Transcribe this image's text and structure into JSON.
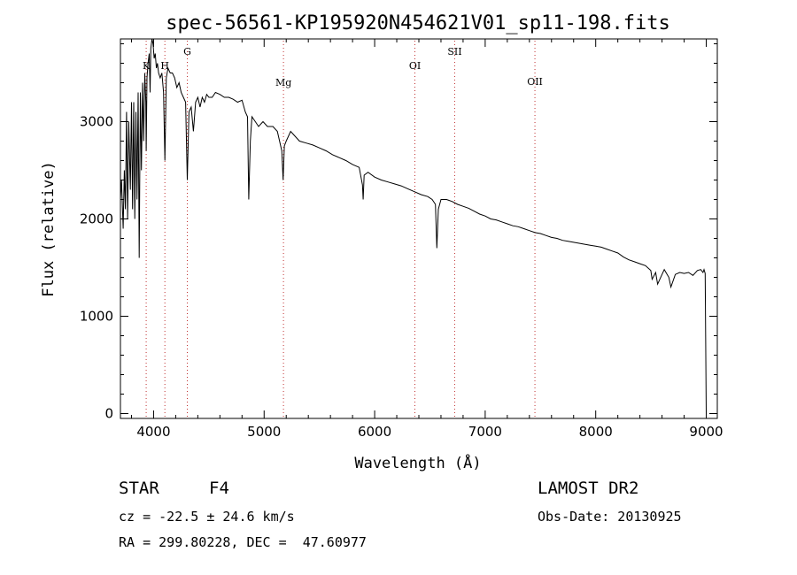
{
  "chart_data": {
    "type": "line",
    "title": "spec-56561-KP195920N454621V01_sp11-198.fits",
    "xlabel": "Wavelength (Å)",
    "ylabel": "Flux (relative)",
    "xlim": [
      3700,
      9100
    ],
    "ylim": [
      -50,
      3850
    ],
    "x_ticks": [
      4000,
      5000,
      6000,
      7000,
      8000,
      9000
    ],
    "y_ticks": [
      0,
      1000,
      2000,
      3000
    ],
    "x_tick_labels": [
      "4000",
      "5000",
      "6000",
      "7000",
      "8000",
      "9000"
    ],
    "y_tick_labels": [
      "0",
      "1000",
      "2000",
      "3000"
    ],
    "grid": false,
    "line_color": "#000000",
    "marker_color": "#c03030",
    "series": [
      {
        "x": [
          3700,
          3710,
          3725,
          3735,
          3745,
          3755,
          3765,
          3775,
          3790,
          3800,
          3810,
          3820,
          3830,
          3840,
          3850,
          3860,
          3870,
          3880,
          3890,
          3900,
          3910,
          3920,
          3930,
          3933,
          3940,
          3950,
          3960,
          3968,
          3975,
          3985,
          3995,
          4005,
          4015,
          4025,
          4035,
          4045,
          4060,
          4075,
          4090,
          4102,
          4115,
          4130,
          4150,
          4170,
          4190,
          4210,
          4230,
          4250,
          4270,
          4290,
          4305,
          4320,
          4340,
          4360,
          4380,
          4400,
          4420,
          4440,
          4460,
          4480,
          4500,
          4530,
          4560,
          4600,
          4640,
          4680,
          4720,
          4760,
          4800,
          4830,
          4850,
          4861,
          4875,
          4890,
          4920,
          4950,
          4990,
          5030,
          5080,
          5120,
          5160,
          5172,
          5183,
          5200,
          5240,
          5280,
          5320,
          5380,
          5440,
          5500,
          5560,
          5620,
          5680,
          5740,
          5800,
          5860,
          5890,
          5896,
          5905,
          5940,
          6000,
          6060,
          6120,
          6180,
          6240,
          6300,
          6360,
          6420,
          6480,
          6520,
          6550,
          6563,
          6576,
          6600,
          6650,
          6700,
          6750,
          6800,
          6850,
          6900,
          6950,
          7000,
          7050,
          7100,
          7150,
          7200,
          7250,
          7300,
          7350,
          7400,
          7450,
          7500,
          7550,
          7600,
          7650,
          7700,
          7750,
          7800,
          7850,
          7900,
          7950,
          8000,
          8050,
          8100,
          8150,
          8200,
          8250,
          8300,
          8350,
          8400,
          8450,
          8498,
          8510,
          8542,
          8560,
          8600,
          8620,
          8662,
          8680,
          8720,
          8760,
          8800,
          8840,
          8880,
          8920,
          8950,
          8970,
          8980,
          8990,
          9000
        ],
        "y": [
          2200,
          2400,
          1900,
          2500,
          2100,
          3100,
          2000,
          3000,
          2300,
          3200,
          2100,
          3200,
          2000,
          3100,
          2200,
          3300,
          1600,
          3300,
          2500,
          3400,
          2800,
          3500,
          3200,
          2700,
          3450,
          3600,
          3700,
          3300,
          3750,
          3850,
          3800,
          3650,
          3700,
          3550,
          3600,
          3500,
          3450,
          3500,
          3300,
          2600,
          3450,
          3550,
          3500,
          3500,
          3450,
          3350,
          3400,
          3300,
          3250,
          3200,
          2400,
          3100,
          3150,
          2900,
          3200,
          3250,
          3150,
          3250,
          3200,
          3280,
          3250,
          3250,
          3300,
          3280,
          3250,
          3250,
          3230,
          3200,
          3220,
          3100,
          3050,
          2200,
          2800,
          3050,
          3000,
          2950,
          3000,
          2950,
          2950,
          2900,
          2700,
          2400,
          2750,
          2800,
          2900,
          2850,
          2800,
          2780,
          2760,
          2730,
          2700,
          2660,
          2630,
          2600,
          2560,
          2530,
          2350,
          2200,
          2450,
          2480,
          2430,
          2400,
          2380,
          2360,
          2340,
          2310,
          2280,
          2250,
          2230,
          2200,
          2150,
          1700,
          2100,
          2200,
          2200,
          2180,
          2150,
          2130,
          2110,
          2080,
          2050,
          2030,
          2000,
          1990,
          1970,
          1950,
          1930,
          1920,
          1900,
          1880,
          1860,
          1850,
          1830,
          1810,
          1800,
          1780,
          1770,
          1760,
          1750,
          1740,
          1730,
          1720,
          1710,
          1690,
          1670,
          1650,
          1610,
          1580,
          1560,
          1540,
          1520,
          1470,
          1380,
          1450,
          1330,
          1430,
          1480,
          1400,
          1300,
          1430,
          1450,
          1440,
          1450,
          1420,
          1470,
          1480,
          1450,
          1480,
          1440,
          0
        ]
      }
    ],
    "line_markers": [
      {
        "label": "K",
        "x": 3933
      },
      {
        "label": "H",
        "x": 4102
      },
      {
        "label": "G",
        "x": 4305
      },
      {
        "label": "Mg",
        "x": 5175
      },
      {
        "label": "OI",
        "x": 6364
      },
      {
        "label": "SII",
        "x": 6724
      },
      {
        "label": "OII",
        "x": 7450
      }
    ]
  },
  "info": {
    "class_label": "STAR",
    "subclass": "F4",
    "survey": "LAMOST DR2",
    "redshift": "cz = -22.5 ± 24.6 km/s",
    "obs_date": "Obs-Date: 20130925",
    "coords": "RA = 299.80228, DEC =  47.60977"
  }
}
